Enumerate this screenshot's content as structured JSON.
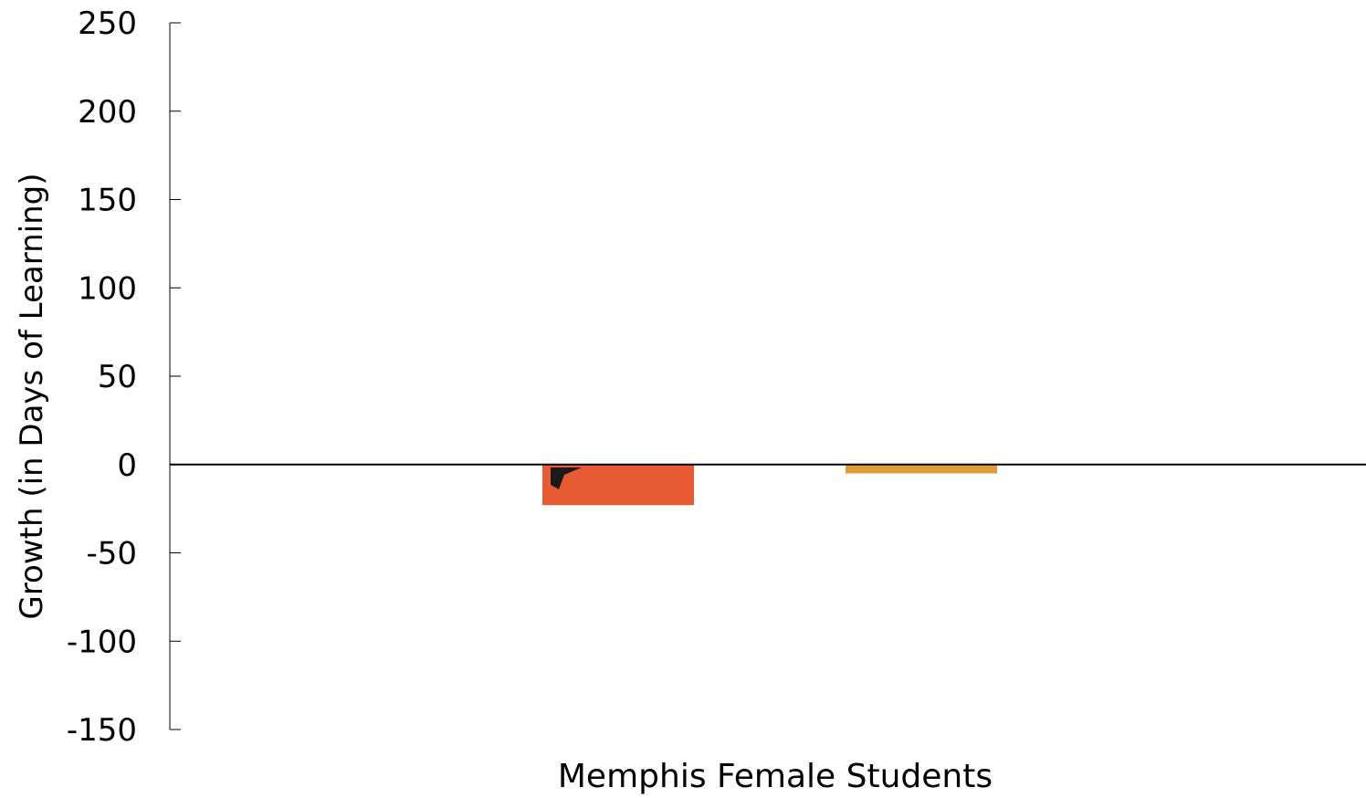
{
  "chart_data": {
    "type": "bar",
    "title": "",
    "xlabel": "",
    "ylabel": "Growth (in Days of Learning)",
    "categories": [
      "Memphis Female Students"
    ],
    "series": [
      {
        "values": [
          -23
        ],
        "color": "#E85A31"
      },
      {
        "values": [
          -5
        ],
        "color": "#E29A3A"
      }
    ],
    "ylim": [
      -150,
      250
    ],
    "yticks": [
      250,
      200,
      150,
      100,
      50,
      0,
      -50,
      -100,
      -150
    ],
    "ytick_labels": [
      "250",
      "200",
      "150",
      "100",
      "50",
      "0",
      "-50",
      "-100",
      "-150"
    ],
    "grid": false,
    "legend": "none"
  }
}
